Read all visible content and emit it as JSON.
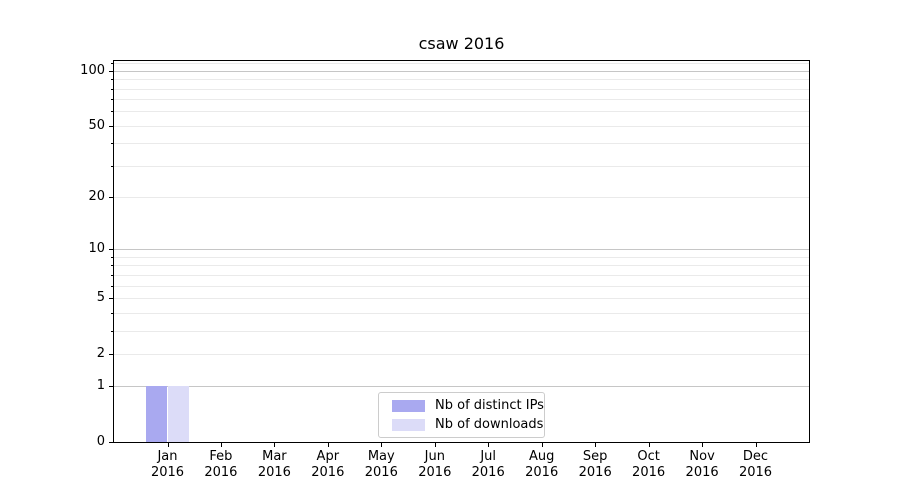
{
  "title": "csaw 2016",
  "chart_data": {
    "type": "bar",
    "title": "csaw 2016",
    "categories": [
      "Jan 2016",
      "Feb 2016",
      "Mar 2016",
      "Apr 2016",
      "May 2016",
      "Jun 2016",
      "Jul 2016",
      "Aug 2016",
      "Sep 2016",
      "Oct 2016",
      "Nov 2016",
      "Dec 2016"
    ],
    "series": [
      {
        "name": "Nb of distinct IPs",
        "color": "#a9a9f0",
        "values": [
          1,
          0,
          0,
          0,
          0,
          0,
          0,
          0,
          0,
          0,
          0,
          0
        ]
      },
      {
        "name": "Nb of downloads",
        "color": "#dcdcf8",
        "values": [
          1,
          0,
          0,
          0,
          0,
          0,
          0,
          0,
          0,
          0,
          0,
          0
        ]
      }
    ],
    "xlabel": "",
    "ylabel": "",
    "yscale": "log1p",
    "ylim": [
      0,
      113
    ],
    "grid": "horizontal major+minor",
    "legend_position": "lower center"
  },
  "axes": {
    "x_ticks": [
      {
        "month": "Jan",
        "year": "2016"
      },
      {
        "month": "Feb",
        "year": "2016"
      },
      {
        "month": "Mar",
        "year": "2016"
      },
      {
        "month": "Apr",
        "year": "2016"
      },
      {
        "month": "May",
        "year": "2016"
      },
      {
        "month": "Jun",
        "year": "2016"
      },
      {
        "month": "Jul",
        "year": "2016"
      },
      {
        "month": "Aug",
        "year": "2016"
      },
      {
        "month": "Sep",
        "year": "2016"
      },
      {
        "month": "Oct",
        "year": "2016"
      },
      {
        "month": "Nov",
        "year": "2016"
      },
      {
        "month": "Dec",
        "year": "2016"
      }
    ],
    "y_major_ticks": [
      {
        "value": 0,
        "label": "0"
      },
      {
        "value": 1,
        "label": "1"
      },
      {
        "value": 2,
        "label": "2"
      },
      {
        "value": 5,
        "label": "5"
      },
      {
        "value": 10,
        "label": "10"
      },
      {
        "value": 20,
        "label": "20"
      },
      {
        "value": 50,
        "label": "50"
      },
      {
        "value": 100,
        "label": "100"
      }
    ],
    "y_minor_ticks": [
      3,
      4,
      6,
      7,
      8,
      9,
      30,
      40,
      60,
      70,
      80,
      90,
      110
    ],
    "y_gridlines_major": [
      1,
      10,
      100
    ],
    "y_gridlines_minor": [
      2,
      3,
      4,
      5,
      6,
      7,
      8,
      9,
      20,
      30,
      40,
      50,
      60,
      70,
      80,
      90,
      110
    ]
  },
  "colors": {
    "bar_distinct_ips": "#a9a9f0",
    "bar_downloads": "#dcdcf8",
    "grid_major": "#c6c6c6",
    "grid_minor": "#eaeaea",
    "axis_frame": "#000000",
    "background": "#ffffff"
  }
}
